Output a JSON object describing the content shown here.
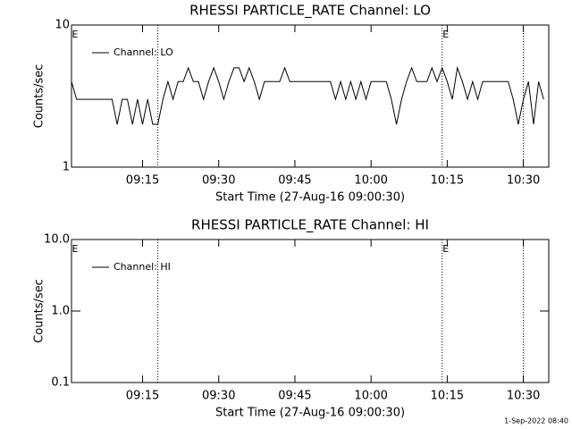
{
  "chart_data": [
    {
      "type": "line",
      "title": "RHESSI PARTICLE_RATE Channel: LO",
      "xlabel": "Start Time (27-Aug-16 09:00:30)",
      "ylabel": "Counts/sec",
      "log_y": true,
      "legend": "upper left",
      "xlim": [
        "09:01",
        "10:35"
      ],
      "xticks": [
        "09:15",
        "09:30",
        "09:45",
        "10:00",
        "10:15",
        "10:30"
      ],
      "ylim": [
        1,
        10
      ],
      "yticks": [
        1,
        10
      ],
      "vlines": [
        "09:18",
        "10:14",
        "10:30"
      ],
      "annotations": [
        {
          "text": "E",
          "x": "09:01"
        },
        {
          "text": "E",
          "x": "10:14"
        }
      ],
      "x": [
        "09:01",
        "09:02",
        "09:03",
        "09:04",
        "09:05",
        "09:06",
        "09:07",
        "09:08",
        "09:09",
        "09:10",
        "09:11",
        "09:12",
        "09:13",
        "09:14",
        "09:15",
        "09:16",
        "09:17",
        "09:18",
        "09:19",
        "09:20",
        "09:21",
        "09:22",
        "09:23",
        "09:24",
        "09:25",
        "09:26",
        "09:27",
        "09:28",
        "09:29",
        "09:30",
        "09:31",
        "09:32",
        "09:33",
        "09:34",
        "09:35",
        "09:36",
        "09:37",
        "09:38",
        "09:39",
        "09:40",
        "09:41",
        "09:42",
        "09:43",
        "09:44",
        "09:45",
        "09:46",
        "09:47",
        "09:48",
        "09:49",
        "09:50",
        "09:51",
        "09:52",
        "09:53",
        "09:54",
        "09:55",
        "09:56",
        "09:57",
        "09:58",
        "09:59",
        "10:00",
        "10:01",
        "10:02",
        "10:03",
        "10:04",
        "10:05",
        "10:06",
        "10:07",
        "10:08",
        "10:09",
        "10:10",
        "10:11",
        "10:12",
        "10:13",
        "10:14",
        "10:15",
        "10:16",
        "10:17",
        "10:18",
        "10:19",
        "10:20",
        "10:21",
        "10:22",
        "10:23",
        "10:24",
        "10:25",
        "10:26",
        "10:27",
        "10:28",
        "10:29",
        "10:30",
        "10:31",
        "10:32",
        "10:33",
        "10:34"
      ],
      "series": [
        {
          "name": "Channel: LO",
          "color": "#000000",
          "values": [
            4,
            3,
            3,
            3,
            3,
            3,
            3,
            3,
            3,
            2,
            3,
            3,
            2,
            3,
            2,
            3,
            2,
            2,
            3,
            4,
            3,
            4,
            4,
            5,
            4,
            4,
            3,
            4,
            5,
            4,
            3,
            4,
            5,
            5,
            4,
            5,
            4,
            3,
            4,
            4,
            4,
            4,
            5,
            4,
            4,
            4,
            4,
            4,
            4,
            4,
            4,
            4,
            3,
            4,
            3,
            4,
            3,
            4,
            3,
            4,
            4,
            4,
            4,
            3,
            2,
            3,
            4,
            5,
            4,
            4,
            4,
            5,
            4,
            5,
            4,
            3,
            5,
            4,
            3,
            4,
            3,
            4,
            4,
            4,
            4,
            4,
            4,
            3,
            2,
            3,
            4,
            2,
            4,
            3
          ]
        }
      ]
    },
    {
      "type": "line",
      "title": "RHESSI PARTICLE_RATE Channel: HI",
      "xlabel": "Start Time (27-Aug-16 09:00:30)",
      "ylabel": "Counts/sec",
      "log_y": true,
      "legend": "upper left",
      "xlim": [
        "09:01",
        "10:35"
      ],
      "xticks": [
        "09:15",
        "09:30",
        "09:45",
        "10:00",
        "10:15",
        "10:30"
      ],
      "ylim": [
        0.1,
        10
      ],
      "yticks": [
        {
          "value": 0.1,
          "label": "0.1"
        },
        {
          "value": 1,
          "label": "1.0"
        },
        {
          "value": 10,
          "label": "10.0"
        }
      ],
      "vlines": [
        "09:18",
        "10:14",
        "10:30"
      ],
      "annotations": [
        {
          "text": "E",
          "x": "09:01"
        },
        {
          "text": "E",
          "x": "10:14"
        }
      ],
      "x": [],
      "series": [
        {
          "name": "Channel: HI",
          "color": "#000000",
          "values": []
        }
      ]
    }
  ],
  "footer": "1-Sep-2022 08:40"
}
